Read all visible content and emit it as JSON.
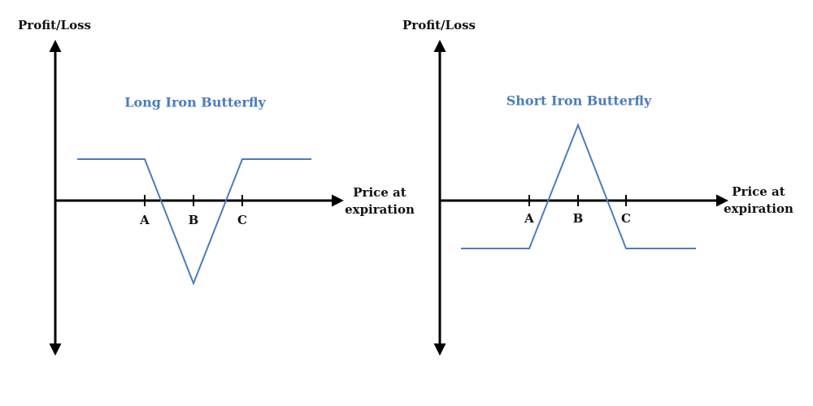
{
  "panels": [
    {
      "y_label": "Profit/Loss",
      "x_label": [
        "Price at",
        "expiration"
      ],
      "title": "Long Iron Butterfly",
      "ticks": [
        "A",
        "B",
        "C"
      ]
    },
    {
      "y_label": "Profit/Loss",
      "x_label": [
        "Price at",
        "expiration"
      ],
      "title": "Short Iron Butterfly",
      "ticks": [
        "A",
        "B",
        "C"
      ]
    }
  ]
}
